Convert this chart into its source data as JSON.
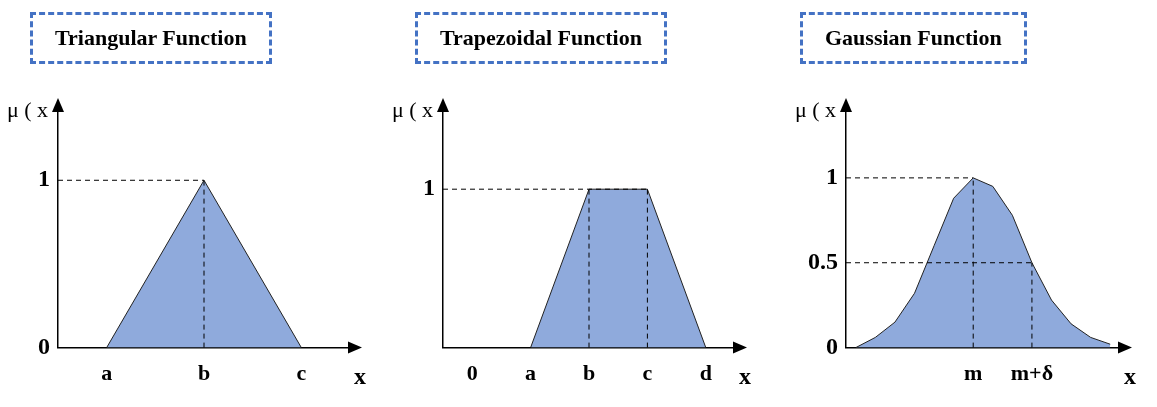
{
  "chart_data": [
    {
      "type": "area",
      "title": "Triangular Function",
      "ylabel": "μ ( x",
      "xlabel": "x",
      "categories": [
        "a",
        "b",
        "c"
      ],
      "series": [
        {
          "color": "#8faadc",
          "values": [
            0,
            1,
            0
          ]
        }
      ],
      "ylim": [
        0,
        1.42
      ],
      "yticks": [
        0,
        1
      ],
      "ref_lines": [
        {
          "axis": "y",
          "value": 1
        },
        {
          "axis": "x",
          "value": "b"
        }
      ]
    },
    {
      "type": "area",
      "title": "Trapezoidal Function",
      "ylabel": "μ ( x",
      "xlabel": "x",
      "categories": [
        "0",
        "a",
        "b",
        "c",
        "d"
      ],
      "series": [
        {
          "color": "#8faadc",
          "values": [
            null,
            0,
            1,
            1,
            0
          ]
        }
      ],
      "ylim": [
        0,
        1.5
      ],
      "yticks": [
        1
      ],
      "ref_lines": [
        {
          "axis": "y",
          "value": 1
        },
        {
          "axis": "x",
          "value": "b"
        },
        {
          "axis": "x",
          "value": "c"
        }
      ]
    },
    {
      "type": "area",
      "title": "Gaussian Function",
      "ylabel": "μ ( x",
      "xlabel": "x",
      "categories": [
        null,
        null,
        null,
        null,
        null,
        null,
        "m",
        null,
        null,
        "m+δ",
        null,
        null,
        null,
        null
      ],
      "series": [
        {
          "color": "#8faadc",
          "values": [
            0,
            0.06,
            0.15,
            0.32,
            0.6,
            0.88,
            1,
            0.95,
            0.78,
            0.5,
            0.28,
            0.14,
            0.06,
            0.02
          ]
        }
      ],
      "ylim": [
        0,
        1.4
      ],
      "yticks": [
        0,
        0.5,
        1
      ],
      "ref_lines": [
        {
          "axis": "y",
          "value": 1
        },
        {
          "axis": "y",
          "value": 0.5
        },
        {
          "axis": "x",
          "value": "m"
        },
        {
          "axis": "x",
          "value": "m+δ"
        }
      ]
    }
  ]
}
